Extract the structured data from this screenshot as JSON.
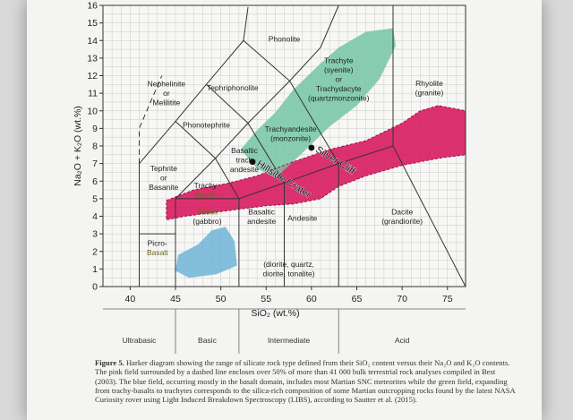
{
  "chart_data": {
    "type": "diagram",
    "xlabel": "SiO₂ (wt.%)",
    "ylabel": "Na₂O + K₂O (wt.%)",
    "xlim": [
      37,
      77
    ],
    "ylim": [
      0,
      16
    ],
    "x_ticks": [
      40,
      45,
      50,
      55,
      60,
      65,
      70,
      75
    ],
    "y_ticks": [
      0,
      1,
      2,
      3,
      4,
      5,
      6,
      7,
      8,
      9,
      10,
      11,
      12,
      13,
      14,
      15,
      16
    ],
    "grid": true,
    "boundaries": [
      [
        [
          41,
          0
        ],
        [
          41,
          3
        ],
        [
          45,
          3
        ]
      ],
      [
        [
          45,
          0
        ],
        [
          45,
          5
        ],
        [
          52,
          5
        ],
        [
          52,
          0
        ]
      ],
      [
        [
          52,
          5
        ],
        [
          57,
          5.9
        ],
        [
          57,
          0
        ]
      ],
      [
        [
          57,
          5.9
        ],
        [
          63,
          7
        ],
        [
          63,
          0
        ]
      ],
      [
        [
          63,
          7
        ],
        [
          69,
          8
        ],
        [
          77,
          0
        ]
      ],
      [
        [
          41,
          3
        ],
        [
          41,
          7
        ],
        [
          45,
          9.4
        ],
        [
          48.4,
          11.5
        ],
        [
          52.5,
          14
        ],
        [
          53,
          15.9
        ]
      ],
      [
        [
          45,
          5
        ],
        [
          49.4,
          7.3
        ],
        [
          53,
          9.3
        ],
        [
          57.6,
          11.7
        ],
        [
          61,
          13.6
        ],
        [
          63,
          16
        ]
      ],
      [
        [
          52,
          5
        ],
        [
          49.4,
          7.3
        ],
        [
          45,
          9.4
        ]
      ],
      [
        [
          57,
          5.9
        ],
        [
          53,
          9.3
        ],
        [
          48.4,
          11.5
        ]
      ],
      [
        [
          63,
          7
        ],
        [
          57.6,
          11.7
        ],
        [
          52.5,
          14
        ]
      ],
      [
        [
          69,
          8
        ],
        [
          69,
          16
        ]
      ]
    ],
    "dashed_boundary": [
      [
        41,
        7
      ],
      [
        41,
        9
      ],
      [
        43.5,
        12
      ]
    ],
    "fields": [
      {
        "name": "pink",
        "color": "#d81b60",
        "points": [
          [
            44,
            4.9
          ],
          [
            47,
            5.5
          ],
          [
            51,
            5.9
          ],
          [
            54,
            6.3
          ],
          [
            58,
            7.1
          ],
          [
            62,
            7.8
          ],
          [
            66,
            8.3
          ],
          [
            70,
            9.3
          ],
          [
            72,
            10.0
          ],
          [
            74,
            10.3
          ],
          [
            77,
            10.0
          ],
          [
            77,
            7.5
          ],
          [
            74,
            7.3
          ],
          [
            70,
            6.9
          ],
          [
            66,
            6.3
          ],
          [
            63,
            5.7
          ],
          [
            61,
            5.0
          ],
          [
            58,
            4.7
          ],
          [
            55,
            4.6
          ],
          [
            52,
            4.4
          ],
          [
            49,
            4.2
          ],
          [
            46,
            4.0
          ],
          [
            44,
            3.8
          ]
        ]
      },
      {
        "name": "blue",
        "color": "#6fb4d6",
        "points": [
          [
            45.3,
            1.8
          ],
          [
            47.5,
            2.4
          ],
          [
            49,
            3.2
          ],
          [
            50.5,
            3.4
          ],
          [
            51.5,
            2.6
          ],
          [
            51.8,
            1.2
          ],
          [
            49.5,
            0.7
          ],
          [
            46.5,
            0.5
          ],
          [
            45,
            0.9
          ]
        ]
      },
      {
        "name": "green",
        "color": "#74c6a6",
        "points": [
          [
            54,
            8.9
          ],
          [
            56,
            9.9
          ],
          [
            58,
            11.2
          ],
          [
            61,
            12.7
          ],
          [
            63,
            13.6
          ],
          [
            66,
            14.5
          ],
          [
            69,
            14.7
          ],
          [
            69.3,
            13.7
          ],
          [
            67.5,
            11.8
          ],
          [
            65,
            10.3
          ],
          [
            62,
            9.1
          ],
          [
            60,
            8.1
          ],
          [
            58,
            7.1
          ],
          [
            56,
            6.2
          ],
          [
            54,
            6.7
          ],
          [
            52.2,
            7.8
          ]
        ]
      }
    ],
    "points": [
      {
        "label": "Hillside Crater",
        "x": 53.5,
        "y": 7.1
      },
      {
        "label": "Silver Cliff",
        "x": 60,
        "y": 7.9
      }
    ],
    "field_labels": [
      {
        "lines": [
          "Phonolite"
        ],
        "x": 57,
        "y": 14.1
      },
      {
        "lines": [
          "Nephelinite",
          "or",
          "Melilitite"
        ],
        "x": 44,
        "y": 11
      },
      {
        "lines": [
          "Tephriphonolite"
        ],
        "x": 51.3,
        "y": 11.3
      },
      {
        "lines": [
          "Trachyte",
          "(syenite)",
          "or",
          "Trachydacyte",
          "(quartzmonzonite)"
        ],
        "x": 63,
        "y": 11.8
      },
      {
        "lines": [
          "Rhyolite",
          "(granite)"
        ],
        "x": 73,
        "y": 11.3
      },
      {
        "lines": [
          "Phonotephrite"
        ],
        "x": 48.4,
        "y": 9.2
      },
      {
        "lines": [
          "Trachyandesite",
          "(monzonite)"
        ],
        "x": 57.7,
        "y": 8.7
      },
      {
        "lines": [
          "Basaltic",
          "trach",
          "andesite"
        ],
        "x": 52.6,
        "y": 7.2
      },
      {
        "lines": [
          "Tephrite",
          "or",
          "Basanite"
        ],
        "x": 43.7,
        "y": 6.2
      },
      {
        "lines": [
          "Trachy",
          "Basalt"
        ],
        "x": 48.3,
        "y": 5.5
      },
      {
        "lines": [
          "Basalt",
          "(gabbro)"
        ],
        "x": 48.5,
        "y": 4.0
      },
      {
        "lines": [
          "Basaltic",
          "andesite"
        ],
        "x": 54.5,
        "y": 4.0
      },
      {
        "lines": [
          "Andesite"
        ],
        "x": 59,
        "y": 3.9
      },
      {
        "lines": [
          "Dacite",
          "(grandiorite)"
        ],
        "x": 70,
        "y": 4.0
      },
      {
        "lines": [
          "Picro-",
          "Basalt"
        ],
        "x": 43,
        "y": 2.2
      },
      {
        "lines": [
          "(diorite, quartz,",
          "diorite, tonalite)"
        ],
        "x": 57.5,
        "y": 1.0
      }
    ],
    "bottom_classes": [
      {
        "label": "Ultrabasic",
        "x1": 37,
        "x2": 45
      },
      {
        "label": "Basic",
        "x1": 45,
        "x2": 52
      },
      {
        "label": "Intermediate",
        "x1": 52,
        "x2": 63
      },
      {
        "label": "Acid",
        "x1": 63,
        "x2": 77
      }
    ]
  },
  "caption": {
    "label": "Figure 5.",
    "text": "Harker diagram showing the range of silicate rock type defined from their SiO₂ content versus their Na₂O and K₂O contents. The pink field surrounded by a dashed line encloses over 50% of more than 41 000 bulk terrestrial rock analyses compiled in Best (2003). The blue field, occurring mostly in the basalt domain, includes most Martian SNC meteorites while the green field, expanding from trachy-basalts to trachytes corresponds to the silica-rich composition of some Martian outcropping rocks found by the latest NASA Curiosity rover using Light Induced Breakdown Spectroscopy (LIBS), according to Sautter et al. (2015)."
  }
}
